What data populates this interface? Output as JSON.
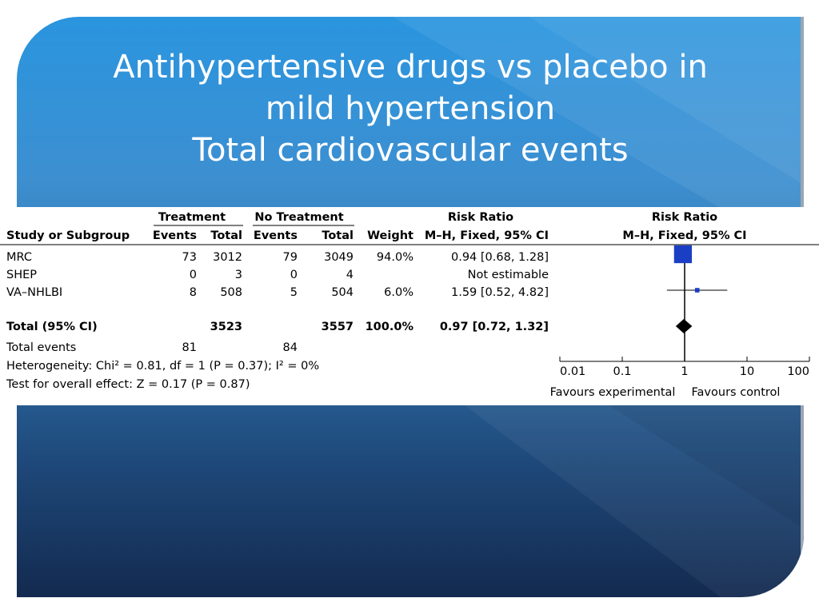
{
  "title": {
    "lines": [
      "Antihypertensive drugs vs placebo in",
      "mild hypertension",
      "Total cardiovascular events"
    ]
  },
  "colors": {
    "slide_top": "#2a95df",
    "slide_bottom": "#132a4f",
    "marker_blue": "#1a3fc4",
    "text": "#000000"
  },
  "chart_data": {
    "type": "table",
    "group_headers": {
      "treatment": "Treatment",
      "no_treatment": "No Treatment",
      "risk_ratio_table": "Risk Ratio",
      "risk_ratio_plot": "Risk Ratio"
    },
    "columns": {
      "study": "Study or Subgroup",
      "t_events": "Events",
      "t_total": "Total",
      "c_events": "Events",
      "c_total": "Total",
      "weight": "Weight",
      "ci": "M–H, Fixed, 95% CI",
      "plot_ci": "M–H, Fixed, 95% CI"
    },
    "studies": [
      {
        "name": "MRC",
        "t_events": "73",
        "t_total": "3012",
        "c_events": "79",
        "c_total": "3049",
        "weight": "94.0%",
        "ci": "0.94 [0.68, 1.28]",
        "rr": 0.94,
        "lo": 0.68,
        "hi": 1.28,
        "w": 94.0
      },
      {
        "name": "SHEP",
        "t_events": "0",
        "t_total": "3",
        "c_events": "0",
        "c_total": "4",
        "weight": "",
        "ci": "Not estimable",
        "rr": null,
        "lo": null,
        "hi": null,
        "w": 0
      },
      {
        "name": "VA–NHLBI",
        "t_events": "8",
        "t_total": "508",
        "c_events": "5",
        "c_total": "504",
        "weight": "6.0%",
        "ci": "1.59 [0.52, 4.82]",
        "rr": 1.59,
        "lo": 0.52,
        "hi": 4.82,
        "w": 6.0
      }
    ],
    "total": {
      "name": "Total (95% CI)",
      "t_total": "3523",
      "c_total": "3557",
      "weight": "100.0%",
      "ci": "0.97 [0.72, 1.32]",
      "rr": 0.97,
      "lo": 0.72,
      "hi": 1.32
    },
    "total_events": {
      "label": "Total events",
      "t": "81",
      "c": "84"
    },
    "heterogeneity": "Heterogeneity: Chi² = 0.81, df = 1 (P = 0.37); I² = 0%",
    "overall_effect": "Test for overall effect: Z = 0.17 (P = 0.87)",
    "axis": {
      "scale": "log",
      "ticks": [
        0.01,
        0.1,
        1,
        10,
        100
      ],
      "tick_labels": [
        "0.01",
        "0.1",
        "1",
        "10",
        "100"
      ],
      "xlim": [
        0.01,
        100
      ]
    },
    "favours_left": "Favours experimental",
    "favours_right": "Favours control"
  }
}
